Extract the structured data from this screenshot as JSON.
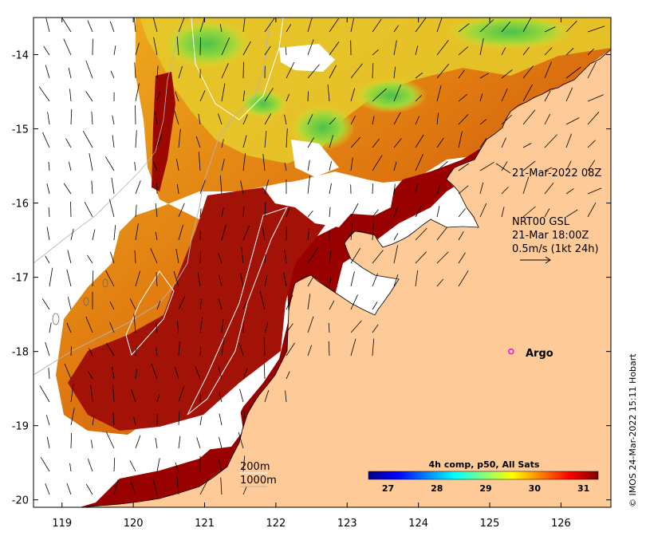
{
  "map": {
    "x_ticks": [
      {
        "value": 119,
        "label": "119"
      },
      {
        "value": 120,
        "label": "120"
      },
      {
        "value": 121,
        "label": "121"
      },
      {
        "value": 122,
        "label": "122"
      },
      {
        "value": 123,
        "label": "123"
      },
      {
        "value": 124,
        "label": "124"
      },
      {
        "value": 125,
        "label": "125"
      },
      {
        "value": 126,
        "label": "126"
      }
    ],
    "y_ticks": [
      {
        "value": -14,
        "label": "-14"
      },
      {
        "value": -15,
        "label": "-15"
      },
      {
        "value": -16,
        "label": "-16"
      },
      {
        "value": -17,
        "label": "-17"
      },
      {
        "value": -18,
        "label": "-18"
      },
      {
        "value": -19,
        "label": "-19"
      },
      {
        "value": -20,
        "label": "-20"
      }
    ],
    "lon_range": [
      118.6,
      126.7
    ],
    "lat_range": [
      -20.1,
      -13.5
    ],
    "land_color": "#fdca98",
    "no_data_color": "#ffffff"
  },
  "annotations": {
    "timestamp": "21-Mar-2022 08Z",
    "current_product": "NRT00 GSL",
    "current_time": "21-Mar 18:00Z",
    "current_scale": "0.5m/s (1kt 24h)",
    "isobath_200": "200m",
    "isobath_1000": "1000m"
  },
  "argo": {
    "label": "Argo",
    "lon": 125.3,
    "lat": -18.0,
    "marker_color": "#ff00ff"
  },
  "colorbar": {
    "title": "4h comp, p50, All Sats",
    "min": 26.6,
    "max": 31.3,
    "ticks": [
      {
        "value": 27,
        "label": "27"
      },
      {
        "value": 28,
        "label": "28"
      },
      {
        "value": 29,
        "label": "29"
      },
      {
        "value": 30,
        "label": "30"
      },
      {
        "value": 31,
        "label": "31"
      }
    ],
    "stops": [
      "#00007f",
      "#0000ff",
      "#007fff",
      "#00ffff",
      "#7fff7f",
      "#ffff00",
      "#ff7f00",
      "#ff0000",
      "#7f0000"
    ]
  },
  "credit": "© IMOS 24-Mar-2022 15:11 Hobart"
}
